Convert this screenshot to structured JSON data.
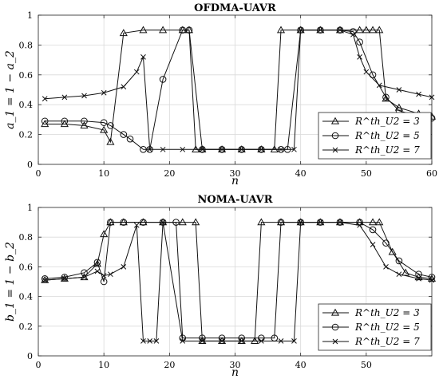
{
  "chart_data": [
    {
      "type": "line",
      "title": "OFDMA-UAVR",
      "xlabel": "n",
      "ylabel": "a_1 = 1 − a_2",
      "xlim": [
        0,
        60
      ],
      "ylim": [
        0,
        1
      ],
      "xticks": [
        0,
        10,
        20,
        30,
        40,
        50,
        60
      ],
      "yticks": [
        0,
        0.2,
        0.4,
        0.6,
        0.8,
        1
      ],
      "grid": true,
      "legend_position": "bottom-right",
      "series": [
        {
          "name": "R^th_U2 = 3",
          "marker": "triangle",
          "x": [
            1,
            4,
            7,
            10,
            11,
            13,
            16,
            19,
            22,
            23,
            24,
            25,
            28,
            31,
            34,
            36,
            37,
            40,
            43,
            46,
            49,
            50,
            51,
            52,
            53,
            55,
            58,
            60
          ],
          "y": [
            0.27,
            0.27,
            0.26,
            0.23,
            0.15,
            0.88,
            0.9,
            0.9,
            0.9,
            0.9,
            0.1,
            0.1,
            0.1,
            0.1,
            0.1,
            0.1,
            0.9,
            0.9,
            0.9,
            0.9,
            0.9,
            0.9,
            0.9,
            0.9,
            0.44,
            0.38,
            0.34,
            0.32
          ]
        },
        {
          "name": "R^th_U2 = 5",
          "marker": "circle",
          "x": [
            1,
            4,
            7,
            10,
            11,
            13,
            14,
            16,
            17,
            19,
            22,
            23,
            25,
            28,
            31,
            34,
            37,
            38,
            40,
            43,
            46,
            48,
            49,
            51,
            53,
            55,
            58,
            60
          ],
          "y": [
            0.29,
            0.29,
            0.29,
            0.28,
            0.26,
            0.2,
            0.17,
            0.1,
            0.1,
            0.57,
            0.9,
            0.9,
            0.1,
            0.1,
            0.1,
            0.1,
            0.1,
            0.1,
            0.9,
            0.9,
            0.9,
            0.89,
            0.82,
            0.6,
            0.45,
            0.36,
            0.32,
            0.31
          ]
        },
        {
          "name": "R^th_U2 = 7",
          "marker": "x",
          "x": [
            1,
            4,
            7,
            10,
            13,
            15,
            16,
            17,
            19,
            22,
            25,
            28,
            31,
            34,
            37,
            39,
            40,
            43,
            46,
            48,
            49,
            50,
            52,
            55,
            58,
            60
          ],
          "y": [
            0.44,
            0.45,
            0.46,
            0.48,
            0.52,
            0.62,
            0.72,
            0.1,
            0.1,
            0.1,
            0.1,
            0.1,
            0.1,
            0.1,
            0.1,
            0.1,
            0.9,
            0.9,
            0.9,
            0.87,
            0.72,
            0.62,
            0.53,
            0.5,
            0.47,
            0.45
          ]
        }
      ]
    },
    {
      "type": "line",
      "title": "NOMA-UAVR",
      "xlabel": "n",
      "ylabel": "b_1 = 1 − b_2",
      "xlim": [
        0,
        60
      ],
      "ylim": [
        0,
        1
      ],
      "xticks": [
        0,
        10,
        20,
        30,
        40,
        50
      ],
      "yticks": [
        0,
        0.2,
        0.4,
        0.6,
        0.8,
        1
      ],
      "grid": true,
      "legend_position": "bottom-right",
      "series": [
        {
          "name": "R^th_U2 = 3",
          "marker": "triangle",
          "x": [
            1,
            4,
            7,
            9,
            10,
            11,
            13,
            16,
            19,
            22,
            24,
            25,
            28,
            31,
            33,
            34,
            37,
            40,
            43,
            46,
            49,
            51,
            52,
            54,
            56,
            58,
            60
          ],
          "y": [
            0.51,
            0.52,
            0.53,
            0.62,
            0.82,
            0.9,
            0.9,
            0.9,
            0.9,
            0.9,
            0.9,
            0.1,
            0.1,
            0.1,
            0.1,
            0.9,
            0.9,
            0.9,
            0.9,
            0.9,
            0.9,
            0.9,
            0.9,
            0.7,
            0.56,
            0.53,
            0.52
          ]
        },
        {
          "name": "R^th_U2 = 5",
          "marker": "circle",
          "x": [
            1,
            4,
            7,
            9,
            10,
            11,
            13,
            16,
            19,
            21,
            22,
            25,
            28,
            31,
            34,
            36,
            37,
            40,
            43,
            46,
            49,
            51,
            53,
            55,
            58,
            60
          ],
          "y": [
            0.52,
            0.53,
            0.56,
            0.63,
            0.5,
            0.9,
            0.9,
            0.9,
            0.9,
            0.9,
            0.12,
            0.12,
            0.12,
            0.12,
            0.12,
            0.12,
            0.9,
            0.9,
            0.9,
            0.9,
            0.9,
            0.85,
            0.76,
            0.64,
            0.55,
            0.53
          ]
        },
        {
          "name": "R^th_U2 = 7",
          "marker": "x",
          "x": [
            1,
            4,
            7,
            9,
            10,
            11,
            13,
            15,
            16,
            17,
            18,
            19,
            22,
            25,
            28,
            31,
            34,
            37,
            39,
            40,
            43,
            46,
            49,
            51,
            53,
            55,
            58,
            60
          ],
          "y": [
            0.51,
            0.52,
            0.53,
            0.57,
            0.54,
            0.55,
            0.6,
            0.88,
            0.1,
            0.1,
            0.1,
            0.9,
            0.1,
            0.1,
            0.1,
            0.1,
            0.1,
            0.1,
            0.1,
            0.9,
            0.9,
            0.9,
            0.88,
            0.75,
            0.6,
            0.55,
            0.52,
            0.51
          ]
        }
      ]
    }
  ]
}
